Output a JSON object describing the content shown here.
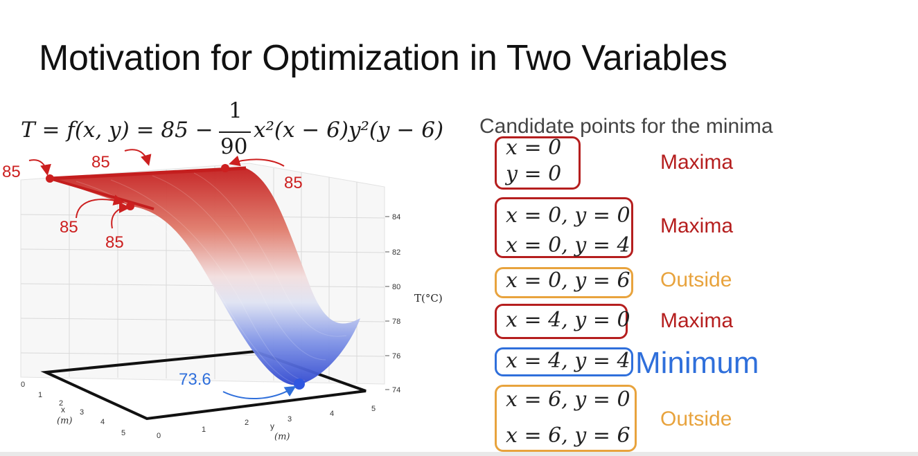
{
  "slide": {
    "title": "Motivation for Optimization in Two Variables",
    "formula": {
      "lhs": "T = f(x, y) = 85 −",
      "frac_num": "1",
      "frac_den": "90",
      "rhs": "x²(x − 6)y²(y − 6)"
    }
  },
  "plot": {
    "surface_annotations": [
      "85",
      "85",
      "85",
      "85",
      "85"
    ],
    "minimum_annotation": "73.6",
    "z_axis_label": "T(°C)",
    "z_ticks": [
      "84",
      "82",
      "80",
      "78",
      "76",
      "74"
    ],
    "x_axis_label": "x",
    "x_axis_unit": "(m)",
    "x_ticks": [
      "0",
      "1",
      "2",
      "3",
      "4",
      "5"
    ],
    "y_axis_label": "y",
    "y_axis_unit": "(m)",
    "y_ticks": [
      "0",
      "1",
      "2",
      "3",
      "4",
      "5"
    ],
    "colors": {
      "high": "#cc2222",
      "low": "#3a5bd9",
      "annotation_red": "#cc1f1f",
      "annotation_blue": "#2f6fdb"
    }
  },
  "candidates": {
    "header": "Candidate points for the minima",
    "groups": [
      {
        "lines": [
          "x = 0",
          "y = 0"
        ],
        "label": "Maxima",
        "color": "#b51e1e"
      },
      {
        "lines": [
          "x = 0, y = 0",
          "x = 0, y = 4"
        ],
        "label": "Maxima",
        "color": "#b51e1e"
      },
      {
        "lines": [
          "x = 0, y = 6"
        ],
        "label": "Outside",
        "color": "#e8a33d"
      },
      {
        "lines": [
          "x = 4, y = 0"
        ],
        "label": "Maxima",
        "color": "#b51e1e"
      },
      {
        "lines": [
          "x = 4, y = 4"
        ],
        "label": "Minimum",
        "color": "#2f6fdb"
      },
      {
        "lines": [
          "x = 6, y = 0",
          "x = 6, y = 6"
        ],
        "label": "Outside",
        "color": "#e8a33d"
      }
    ]
  }
}
